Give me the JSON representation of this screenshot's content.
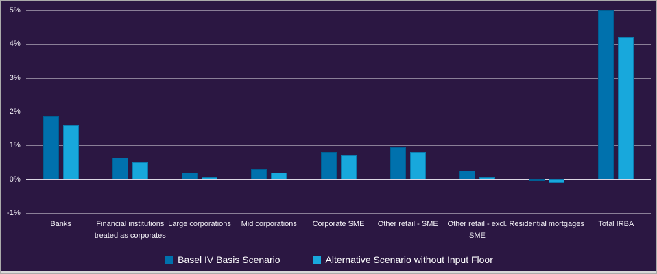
{
  "chart_data": {
    "type": "bar",
    "title": "",
    "categories": [
      "Banks",
      "Financial institutions treated as corporates",
      "Large corporations",
      "Mid corporations",
      "Corporate SME",
      "Other retail - SME",
      "Other retail - excl. SME",
      "Residential mortgages",
      "Total IRBA"
    ],
    "series": [
      {
        "name": "Basel IV Basis Scenario",
        "color": "#0071AD",
        "values": [
          1.85,
          0.65,
          0.2,
          0.3,
          0.8,
          0.95,
          0.25,
          -0.05,
          5.0
        ]
      },
      {
        "name": "Alternative Scenario without Input Floor",
        "color": "#18A8DC",
        "values": [
          1.6,
          0.5,
          0.05,
          0.2,
          0.7,
          0.8,
          0.05,
          -0.1,
          4.2
        ]
      }
    ],
    "y_ticks": [
      {
        "value": 5,
        "label": "5%"
      },
      {
        "value": 4,
        "label": "4%"
      },
      {
        "value": 3,
        "label": "3%"
      },
      {
        "value": 2,
        "label": "2%"
      },
      {
        "value": 1,
        "label": "1%"
      },
      {
        "value": 0,
        "label": "0%"
      },
      {
        "value": -1,
        "label": "-1%"
      }
    ],
    "ylim": [
      -1,
      5
    ],
    "grid": true,
    "legend_position": "bottom"
  },
  "colors": {
    "background": "#2B1742",
    "grid": "#8A7F97",
    "zero_line": "#DCD7E3",
    "text": "#F2F0F5",
    "frame_strip": "#D9D9D9",
    "frame_border": "#ABABAB"
  }
}
